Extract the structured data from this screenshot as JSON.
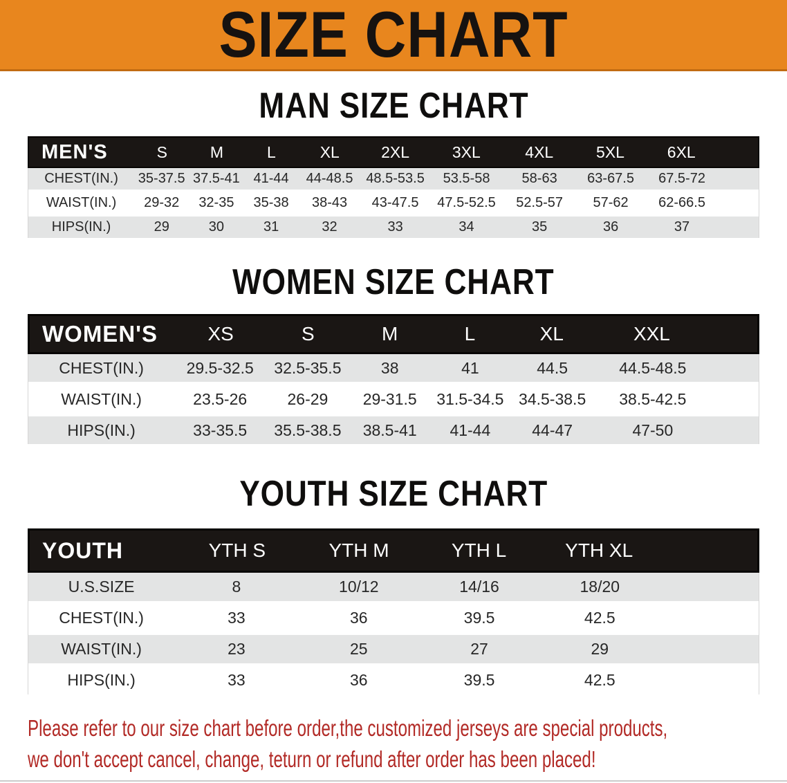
{
  "banner": {
    "title": "SIZE CHART"
  },
  "colors": {
    "banner_bg": "#E8861E",
    "header_bar": "#1A1614",
    "row_shade": "#E3E4E4",
    "disclaimer_red": "#B22A26"
  },
  "sections": [
    {
      "heading": "MAN SIZE CHART",
      "table": {
        "label": "MEN'S",
        "columns": [
          "S",
          "M",
          "L",
          "XL",
          "2XL",
          "3XL",
          "4XL",
          "5XL",
          "6XL"
        ],
        "rows": [
          {
            "label": "CHEST(IN.)",
            "values": [
              "35-37.5",
              "37.5-41",
              "41-44",
              "44-48.5",
              "48.5-53.5",
              "53.5-58",
              "58-63",
              "63-67.5",
              "67.5-72"
            ]
          },
          {
            "label": "WAIST(IN.)",
            "values": [
              "29-32",
              "32-35",
              "35-38",
              "38-43",
              "43-47.5",
              "47.5-52.5",
              "52.5-57",
              "57-62",
              "62-66.5"
            ]
          },
          {
            "label": "HIPS(IN.)",
            "values": [
              "29",
              "30",
              "31",
              "32",
              "33",
              "34",
              "35",
              "36",
              "37"
            ]
          }
        ]
      }
    },
    {
      "heading": "WOMEN SIZE CHART",
      "table": {
        "label": "WOMEN'S",
        "columns": [
          "XS",
          "S",
          "M",
          "L",
          "XL",
          "XXL"
        ],
        "rows": [
          {
            "label": "CHEST(IN.)",
            "values": [
              "29.5-32.5",
              "32.5-35.5",
              "38",
              "41",
              "44.5",
              "44.5-48.5"
            ]
          },
          {
            "label": "WAIST(IN.)",
            "values": [
              "23.5-26",
              "26-29",
              "29-31.5",
              "31.5-34.5",
              "34.5-38.5",
              "38.5-42.5"
            ]
          },
          {
            "label": "HIPS(IN.)",
            "values": [
              "33-35.5",
              "35.5-38.5",
              "38.5-41",
              "41-44",
              "44-47",
              "47-50"
            ]
          }
        ]
      }
    },
    {
      "heading": "YOUTH SIZE CHART",
      "table": {
        "label": "YOUTH",
        "columns": [
          "YTH S",
          "YTH M",
          "YTH L",
          "YTH XL"
        ],
        "rows": [
          {
            "label": "U.S.SIZE",
            "values": [
              "8",
              "10/12",
              "14/16",
              "18/20"
            ]
          },
          {
            "label": "CHEST(IN.)",
            "values": [
              "33",
              "36",
              "39.5",
              "42.5"
            ]
          },
          {
            "label": "WAIST(IN.)",
            "values": [
              "23",
              "25",
              "27",
              "29"
            ]
          },
          {
            "label": "HIPS(IN.)",
            "values": [
              "33",
              "36",
              "39.5",
              "42.5"
            ]
          }
        ]
      }
    }
  ],
  "disclaimer": {
    "line1": "Please refer to our size chart before order,the customized jerseys are special products,",
    "line2": "we don't accept cancel, change, teturn or refund after order has been placed!"
  }
}
